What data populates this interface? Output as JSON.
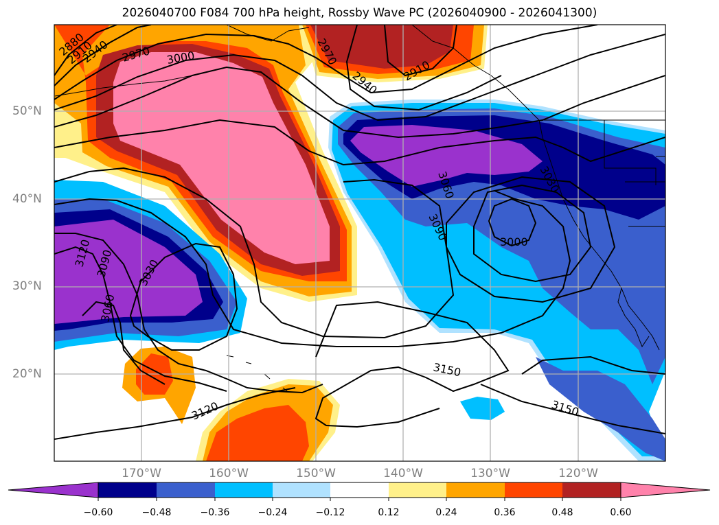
{
  "title": "2026040700 F084 700 hPa height, Rossby Wave PC (2026040900 - 2026041300)",
  "map": {
    "lat_labels": [
      "50°N",
      "40°N",
      "30°N",
      "20°N"
    ],
    "lon_labels": [
      "170°W",
      "160°W",
      "150°W",
      "140°W",
      "130°W",
      "120°W"
    ],
    "label_color": "#7f7f7f",
    "gridline_color": "#b0b0b0"
  },
  "contour_labels": [
    "2880",
    "2910",
    "2940",
    "2970",
    "3000",
    "2970",
    "2940",
    "2910",
    "3060",
    "3090",
    "3030",
    "3000",
    "3120",
    "3090",
    "3030",
    "3060",
    "3120",
    "3150",
    "3150"
  ],
  "shading": {
    "positive_anomaly_regions": [
      "North Pacific central ridge",
      "Gulf of Alaska",
      "Northwest corner",
      "Tropical central Pacific south of Hawaii",
      "West of Hawaii"
    ],
    "negative_anomaly_regions": [
      "West-central subtropical Pacific",
      "Northeast Pacific trough",
      "Western US",
      "Baja/Mexico coast"
    ]
  },
  "colorbar": {
    "ticks": [
      "−0.60",
      "−0.48",
      "−0.36",
      "−0.24",
      "−0.12",
      "0.12",
      "0.24",
      "0.36",
      "0.48",
      "0.60"
    ],
    "colors": [
      "#9a32cd",
      "#00008b",
      "#3a5fcd",
      "#00bfff",
      "#b0e2ff",
      "#ffffff",
      "#fff08a",
      "#ffa500",
      "#ff4500",
      "#b22222",
      "#ff82ab"
    ]
  }
}
